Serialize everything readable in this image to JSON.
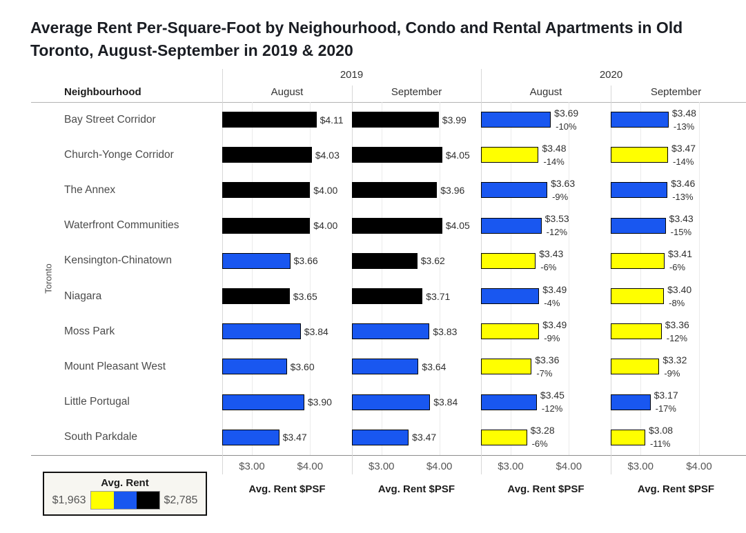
{
  "title": "Average Rent Per-Square-Foot by Neighourhood, Condo and Rental Apartments in Old Toronto, August-September in 2019 & 2020",
  "header": {
    "years": [
      "2019",
      "2020"
    ],
    "months": [
      "August",
      "September",
      "August",
      "September"
    ],
    "row_header": "Neighbourhood",
    "row_group": "Toronto"
  },
  "colors": {
    "yellow": "#FFFF00",
    "blue": "#1957F0",
    "black": "#000000"
  },
  "legend": {
    "title": "Avg. Rent",
    "min_label": "$1,963",
    "max_label": "$2,785",
    "swatch_order": [
      "yellow",
      "blue",
      "black"
    ]
  },
  "chart_data": {
    "type": "bar",
    "orientation": "horizontal",
    "group_label": "Toronto",
    "categories": [
      "Bay Street Corridor",
      "Church-Yonge Corridor",
      "The Annex",
      "Waterfront Communities",
      "Kensington-Chinatown",
      "Niagara",
      "Moss Park",
      "Mount Pleasant West",
      "Little Portugal",
      "South Parkdale"
    ],
    "xlim": [
      2.49,
      4.72
    ],
    "ticks": [
      {
        "value": 3.0,
        "label": "$3.00"
      },
      {
        "value": 4.0,
        "label": "$4.00"
      }
    ],
    "axis_title": "Avg. Rent $PSF",
    "grid": true,
    "series": [
      {
        "year": "2019",
        "month": "August",
        "values": [
          4.11,
          4.03,
          4.0,
          4.0,
          3.66,
          3.65,
          3.84,
          3.6,
          3.9,
          3.47
        ],
        "labels": [
          "$4.11",
          "$4.03",
          "$4.00",
          "$4.00",
          "$3.66",
          "$3.65",
          "$3.84",
          "$3.60",
          "$3.90",
          "$3.47"
        ],
        "colors": [
          "black",
          "black",
          "black",
          "black",
          "blue",
          "black",
          "blue",
          "blue",
          "blue",
          "blue"
        ]
      },
      {
        "year": "2019",
        "month": "September",
        "values": [
          3.99,
          4.05,
          3.96,
          4.05,
          3.62,
          3.71,
          3.83,
          3.64,
          3.84,
          3.47
        ],
        "labels": [
          "$3.99",
          "$4.05",
          "$3.96",
          "$4.05",
          "$3.62",
          "$3.71",
          "$3.83",
          "$3.64",
          "$3.84",
          "$3.47"
        ],
        "colors": [
          "black",
          "black",
          "black",
          "black",
          "black",
          "black",
          "blue",
          "blue",
          "blue",
          "blue"
        ]
      },
      {
        "year": "2020",
        "month": "August",
        "values": [
          3.69,
          3.48,
          3.63,
          3.53,
          3.43,
          3.49,
          3.49,
          3.36,
          3.45,
          3.28
        ],
        "labels": [
          "$3.69",
          "$3.48",
          "$3.63",
          "$3.53",
          "$3.43",
          "$3.49",
          "$3.49",
          "$3.36",
          "$3.45",
          "$3.28"
        ],
        "pct_change": [
          "-10%",
          "-14%",
          "-9%",
          "-12%",
          "-6%",
          "-4%",
          "-9%",
          "-7%",
          "-12%",
          "-6%"
        ],
        "colors": [
          "blue",
          "yellow",
          "blue",
          "blue",
          "yellow",
          "blue",
          "yellow",
          "yellow",
          "blue",
          "yellow"
        ]
      },
      {
        "year": "2020",
        "month": "September",
        "values": [
          3.48,
          3.47,
          3.46,
          3.43,
          3.41,
          3.4,
          3.36,
          3.32,
          3.17,
          3.08
        ],
        "labels": [
          "$3.48",
          "$3.47",
          "$3.46",
          "$3.43",
          "$3.41",
          "$3.40",
          "$3.36",
          "$3.32",
          "$3.17",
          "$3.08"
        ],
        "pct_change": [
          "-13%",
          "-14%",
          "-13%",
          "-15%",
          "-6%",
          "-8%",
          "-12%",
          "-9%",
          "-17%",
          "-11%"
        ],
        "colors": [
          "blue",
          "yellow",
          "blue",
          "blue",
          "yellow",
          "yellow",
          "yellow",
          "yellow",
          "blue",
          "yellow"
        ]
      }
    ]
  }
}
